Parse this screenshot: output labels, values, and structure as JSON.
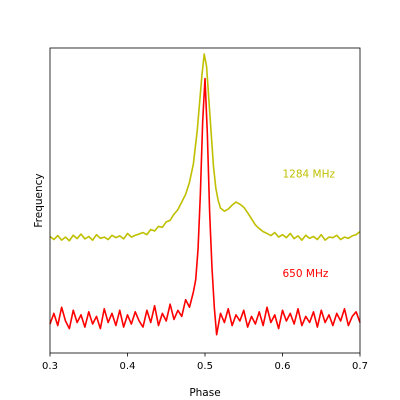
{
  "chart_data": {
    "type": "line",
    "xlabel": "Phase",
    "ylabel": "Frequency",
    "xlim": [
      0.3,
      0.7
    ],
    "ylim": [
      0,
      10
    ],
    "xticks": [
      "0.3",
      "0.4",
      "0.5",
      "0.6",
      "0.7"
    ],
    "xtick_values": [
      0.3,
      0.4,
      0.5,
      0.6,
      0.7
    ],
    "yticks_shown": false,
    "grid": false,
    "series": [
      {
        "name": "1284 MHz",
        "color": "#bfbf00",
        "x": [
          0.3,
          0.305,
          0.31,
          0.315,
          0.32,
          0.325,
          0.33,
          0.335,
          0.34,
          0.345,
          0.35,
          0.355,
          0.36,
          0.365,
          0.37,
          0.375,
          0.38,
          0.385,
          0.39,
          0.395,
          0.4,
          0.405,
          0.41,
          0.415,
          0.42,
          0.425,
          0.43,
          0.435,
          0.44,
          0.445,
          0.45,
          0.455,
          0.46,
          0.465,
          0.47,
          0.475,
          0.48,
          0.485,
          0.49,
          0.493,
          0.496,
          0.499,
          0.502,
          0.505,
          0.508,
          0.511,
          0.514,
          0.517,
          0.52,
          0.525,
          0.53,
          0.535,
          0.54,
          0.545,
          0.55,
          0.555,
          0.56,
          0.565,
          0.57,
          0.575,
          0.58,
          0.585,
          0.59,
          0.595,
          0.6,
          0.605,
          0.61,
          0.615,
          0.62,
          0.625,
          0.63,
          0.635,
          0.64,
          0.645,
          0.65,
          0.655,
          0.66,
          0.665,
          0.67,
          0.675,
          0.68,
          0.685,
          0.69,
          0.695,
          0.7
        ],
        "y": [
          3.82,
          3.72,
          3.85,
          3.7,
          3.8,
          3.68,
          3.86,
          3.75,
          3.9,
          3.74,
          3.82,
          3.7,
          3.88,
          3.76,
          3.8,
          3.72,
          3.86,
          3.78,
          3.84,
          3.74,
          3.92,
          3.8,
          3.86,
          3.9,
          3.95,
          3.88,
          4.05,
          4.0,
          4.15,
          4.12,
          4.3,
          4.35,
          4.55,
          4.7,
          4.95,
          5.2,
          5.6,
          6.2,
          7.3,
          8.2,
          9.1,
          9.8,
          9.4,
          8.3,
          7.2,
          6.1,
          5.4,
          5.0,
          4.75,
          4.65,
          4.72,
          4.85,
          4.95,
          4.88,
          4.78,
          4.6,
          4.4,
          4.2,
          4.08,
          3.98,
          3.92,
          3.85,
          3.95,
          3.8,
          3.88,
          3.78,
          3.92,
          3.75,
          3.84,
          3.7,
          3.86,
          3.76,
          3.82,
          3.72,
          3.88,
          3.7,
          3.8,
          3.78,
          3.86,
          3.72,
          3.8,
          3.76,
          3.84,
          3.88,
          3.98
        ]
      },
      {
        "name": "650 MHz",
        "color": "#ff0000",
        "x": [
          0.3,
          0.305,
          0.31,
          0.315,
          0.32,
          0.325,
          0.33,
          0.335,
          0.34,
          0.345,
          0.35,
          0.355,
          0.36,
          0.365,
          0.37,
          0.375,
          0.38,
          0.385,
          0.39,
          0.395,
          0.4,
          0.405,
          0.41,
          0.415,
          0.42,
          0.425,
          0.43,
          0.435,
          0.44,
          0.445,
          0.45,
          0.455,
          0.46,
          0.465,
          0.47,
          0.475,
          0.48,
          0.485,
          0.488,
          0.491,
          0.494,
          0.497,
          0.5,
          0.503,
          0.506,
          0.509,
          0.512,
          0.515,
          0.52,
          0.525,
          0.53,
          0.535,
          0.54,
          0.545,
          0.55,
          0.555,
          0.56,
          0.565,
          0.57,
          0.575,
          0.58,
          0.585,
          0.59,
          0.595,
          0.6,
          0.605,
          0.61,
          0.615,
          0.62,
          0.625,
          0.63,
          0.635,
          0.64,
          0.645,
          0.65,
          0.655,
          0.66,
          0.665,
          0.67,
          0.675,
          0.68,
          0.685,
          0.69,
          0.695,
          0.7
        ],
        "y": [
          0.95,
          1.3,
          0.9,
          1.5,
          1.05,
          0.8,
          1.4,
          1.0,
          1.25,
          0.85,
          1.35,
          0.95,
          1.2,
          0.8,
          1.45,
          1.0,
          1.3,
          0.9,
          1.4,
          0.85,
          1.25,
          0.95,
          1.35,
          1.05,
          0.85,
          1.4,
          1.0,
          1.55,
          0.9,
          1.3,
          1.05,
          1.6,
          1.1,
          1.4,
          1.2,
          1.75,
          1.5,
          2.0,
          2.4,
          3.4,
          5.2,
          7.6,
          9.0,
          7.2,
          4.6,
          2.8,
          1.5,
          0.6,
          1.3,
          1.0,
          1.45,
          0.9,
          1.25,
          1.05,
          1.4,
          0.85,
          1.2,
          0.95,
          1.35,
          0.9,
          1.5,
          1.0,
          1.25,
          0.8,
          1.4,
          1.05,
          1.3,
          0.95,
          1.45,
          0.9,
          1.2,
          1.0,
          1.35,
          0.85,
          1.4,
          1.0,
          1.25,
          0.9,
          1.3,
          1.05,
          1.45,
          0.9,
          1.2,
          1.35,
          1.0
        ]
      }
    ],
    "annotations": [
      {
        "text": "1284 MHz",
        "x": 0.6,
        "y": 5.75,
        "color": "#bfbf00"
      },
      {
        "text": "650 MHz",
        "x": 0.6,
        "y": 2.5,
        "color": "#ff0000"
      }
    ]
  }
}
